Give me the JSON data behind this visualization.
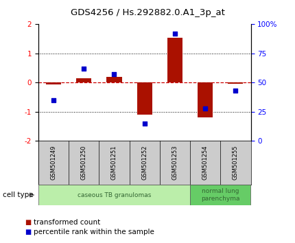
{
  "title": "GDS4256 / Hs.292882.0.A1_3p_at",
  "samples": [
    "GSM501249",
    "GSM501250",
    "GSM501251",
    "GSM501252",
    "GSM501253",
    "GSM501254",
    "GSM501255"
  ],
  "transformed_count": [
    -0.07,
    0.15,
    0.2,
    -1.1,
    1.55,
    -1.2,
    -0.05
  ],
  "percentile_rank": [
    35,
    62,
    57,
    15,
    92,
    28,
    43
  ],
  "ylim_left": [
    -2,
    2
  ],
  "ylim_right": [
    0,
    100
  ],
  "yticks_left": [
    -2,
    -1,
    0,
    1,
    2
  ],
  "yticks_right": [
    0,
    25,
    50,
    75,
    100
  ],
  "ytick_labels_right": [
    "0",
    "25",
    "50",
    "75",
    "100%"
  ],
  "bar_color": "#aa1100",
  "dot_color": "#0000cc",
  "zero_line_color": "#cc0000",
  "cell_types": [
    {
      "label": "caseous TB granulomas",
      "samples_range": [
        0,
        4
      ],
      "color": "#bbeeaa"
    },
    {
      "label": "normal lung\nparenchyma",
      "samples_range": [
        5,
        6
      ],
      "color": "#66cc66"
    }
  ],
  "cell_type_label": "cell type",
  "legend_bar_label": "transformed count",
  "legend_dot_label": "percentile rank within the sample",
  "background_color": "#ffffff",
  "plot_bg_color": "#ffffff",
  "sample_label_bg": "#cccccc",
  "bar_width": 0.5
}
